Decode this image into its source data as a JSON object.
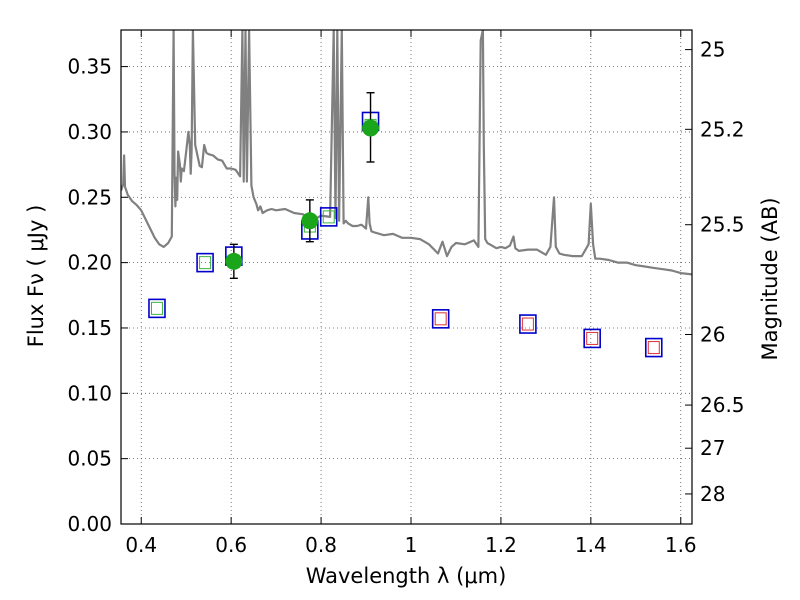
{
  "chart_data": {
    "type": "scatter",
    "xlabel": "Wavelength  λ (μm)",
    "ylabel": "Flux  Fν  ( μJy )",
    "y2label": "Magnitude (AB)",
    "xlim": [
      0.355,
      1.625
    ],
    "ylim": [
      0.0,
      0.378
    ],
    "grid": true,
    "x_ticks": [
      0.4,
      0.6,
      0.8,
      1.0,
      1.2,
      1.4,
      1.6
    ],
    "x_tick_labels": [
      "0.4",
      "0.6",
      "0.8",
      "1",
      "1.2",
      "1.4",
      "1.6"
    ],
    "y_ticks": [
      0.0,
      0.05,
      0.1,
      0.15,
      0.2,
      0.25,
      0.3,
      0.35
    ],
    "y_tick_labels": [
      "0.00",
      "0.05",
      "0.10",
      "0.15",
      "0.20",
      "0.25",
      "0.30",
      "0.35"
    ],
    "y2_ticks": [
      {
        "label": "25",
        "flux": 0.363
      },
      {
        "label": "25.2",
        "flux": 0.302
      },
      {
        "label": "25.5",
        "flux": 0.229
      },
      {
        "label": "26",
        "flux": 0.145
      },
      {
        "label": "26.5",
        "flux": 0.091
      },
      {
        "label": "27",
        "flux": 0.058
      },
      {
        "label": "28",
        "flux": 0.023
      }
    ],
    "colors": {
      "sed": "#808080",
      "observed": "#1aa51a",
      "model_box": "#0000cc",
      "optical_inner": "#3cb43c",
      "nir_inner": "#e03030",
      "errorbar": "#000000",
      "grid": "#555555"
    },
    "series": [
      {
        "role": "sed",
        "x": [
          0.355,
          0.36,
          0.362,
          0.364,
          0.366,
          0.37,
          0.38,
          0.39,
          0.4,
          0.41,
          0.42,
          0.43,
          0.44,
          0.45,
          0.46,
          0.468,
          0.472,
          0.474,
          0.476,
          0.478,
          0.48,
          0.482,
          0.486,
          0.488,
          0.49,
          0.495,
          0.5,
          0.505,
          0.508,
          0.51,
          0.512,
          0.515,
          0.52,
          0.53,
          0.535,
          0.54,
          0.545,
          0.55,
          0.56,
          0.57,
          0.58,
          0.59,
          0.6,
          0.61,
          0.62,
          0.625,
          0.628,
          0.632,
          0.635,
          0.64,
          0.645,
          0.65,
          0.656,
          0.66,
          0.665,
          0.67,
          0.68,
          0.69,
          0.7,
          0.72,
          0.74,
          0.76,
          0.78,
          0.8,
          0.82,
          0.828,
          0.832,
          0.836,
          0.84,
          0.846,
          0.85,
          0.855,
          0.86,
          0.87,
          0.88,
          0.89,
          0.9,
          0.905,
          0.908,
          0.912,
          0.92,
          0.94,
          0.96,
          0.98,
          1.0,
          1.02,
          1.04,
          1.06,
          1.07,
          1.08,
          1.09,
          1.1,
          1.12,
          1.14,
          1.15,
          1.155,
          1.16,
          1.162,
          1.165,
          1.17,
          1.18,
          1.19,
          1.2,
          1.21,
          1.22,
          1.228,
          1.232,
          1.24,
          1.26,
          1.28,
          1.3,
          1.31,
          1.318,
          1.322,
          1.33,
          1.34,
          1.36,
          1.38,
          1.395,
          1.4,
          1.405,
          1.41,
          1.42,
          1.44,
          1.46,
          1.48,
          1.5,
          1.52,
          1.54,
          1.56,
          1.58,
          1.6,
          1.625
        ],
        "y": [
          0.255,
          0.26,
          0.282,
          0.258,
          0.256,
          0.252,
          0.247,
          0.244,
          0.24,
          0.233,
          0.226,
          0.219,
          0.214,
          0.212,
          0.215,
          0.22,
          0.378,
          0.27,
          0.243,
          0.265,
          0.248,
          0.285,
          0.275,
          0.262,
          0.272,
          0.27,
          0.285,
          0.3,
          0.29,
          0.268,
          0.285,
          0.378,
          0.29,
          0.274,
          0.273,
          0.29,
          0.284,
          0.283,
          0.282,
          0.279,
          0.278,
          0.272,
          0.272,
          0.271,
          0.266,
          0.378,
          0.262,
          0.378,
          0.262,
          0.378,
          0.259,
          0.25,
          0.245,
          0.24,
          0.243,
          0.238,
          0.24,
          0.241,
          0.24,
          0.241,
          0.238,
          0.237,
          0.232,
          0.236,
          0.235,
          0.378,
          0.234,
          0.378,
          0.232,
          0.378,
          0.23,
          0.232,
          0.23,
          0.228,
          0.228,
          0.229,
          0.226,
          0.25,
          0.23,
          0.224,
          0.223,
          0.221,
          0.222,
          0.219,
          0.219,
          0.218,
          0.214,
          0.207,
          0.216,
          0.205,
          0.212,
          0.215,
          0.214,
          0.217,
          0.212,
          0.37,
          0.378,
          0.29,
          0.218,
          0.215,
          0.213,
          0.211,
          0.212,
          0.211,
          0.213,
          0.22,
          0.211,
          0.209,
          0.21,
          0.21,
          0.206,
          0.212,
          0.25,
          0.212,
          0.207,
          0.206,
          0.205,
          0.205,
          0.214,
          0.245,
          0.214,
          0.203,
          0.203,
          0.202,
          0.2,
          0.2,
          0.198,
          0.197,
          0.196,
          0.195,
          0.194,
          0.192,
          0.191
        ]
      },
      {
        "role": "observed",
        "x": [
          0.606,
          0.775,
          0.91
        ],
        "y": [
          0.201,
          0.232,
          0.303
        ],
        "yerr_low": [
          0.188,
          0.216,
          0.277
        ],
        "yerr_high": [
          0.214,
          0.248,
          0.33
        ]
      },
      {
        "role": "optical_model",
        "x": [
          0.435,
          0.542,
          0.606,
          0.775,
          0.817,
          0.91
        ],
        "y": [
          0.165,
          0.2,
          0.205,
          0.225,
          0.235,
          0.308
        ],
        "inner_y": [
          0.165,
          0.2,
          0.201,
          0.228,
          0.235,
          0.305
        ]
      },
      {
        "role": "nir_model",
        "x": [
          1.066,
          1.26,
          1.403,
          1.54
        ],
        "y": [
          0.157,
          0.153,
          0.142,
          0.135
        ],
        "inner_y": [
          0.157,
          0.153,
          0.142,
          0.135
        ]
      }
    ]
  }
}
